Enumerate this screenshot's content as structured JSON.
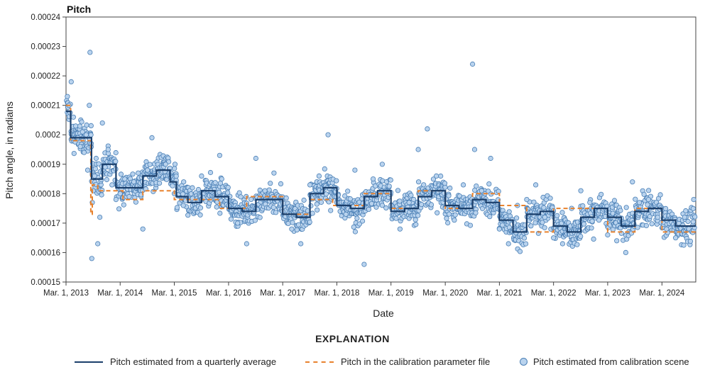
{
  "chart_data": {
    "type": "scatter",
    "title": "Pitch",
    "xlabel": "Date",
    "ylabel": "Pitch angle, in radians",
    "ylim": [
      0.00015,
      0.00024
    ],
    "xlim": [
      "2013-03-01",
      "2024-10-15"
    ],
    "yticks": [
      "0.00015",
      "0.00016",
      "0.00017",
      "0.00018",
      "0.00019",
      "0.0002",
      "0.00021",
      "0.00022",
      "0.00023",
      "0.00024"
    ],
    "xticks": [
      {
        "date": "2013-03-01",
        "label": "Mar. 1, 2013"
      },
      {
        "date": "2014-03-01",
        "label": "Mar. 1, 2014"
      },
      {
        "date": "2015-03-01",
        "label": "Mar. 1, 2015"
      },
      {
        "date": "2016-03-01",
        "label": "Mar. 1, 2016"
      },
      {
        "date": "2017-03-01",
        "label": "Mar. 1, 2017"
      },
      {
        "date": "2018-03-01",
        "label": "Mar. 1, 2018"
      },
      {
        "date": "2019-03-01",
        "label": "Mar. 1, 2019"
      },
      {
        "date": "2020-03-01",
        "label": "Mar. 1, 2020"
      },
      {
        "date": "2021-03-01",
        "label": "Mar. 1, 2021"
      },
      {
        "date": "2022-03-01",
        "label": "Mar. 1, 2022"
      },
      {
        "date": "2023-03-01",
        "label": "Mar. 1, 2023"
      },
      {
        "date": "2024-03-01",
        "label": "Mar. 1, 2024"
      }
    ],
    "legend_title": "EXPLANATION",
    "series": [
      {
        "name": "Pitch estimated from a quarterly average",
        "style": "step-solid",
        "color": "#1b3f6b",
        "steps": [
          [
            "2013-03-01",
            0.000208
          ],
          [
            "2013-04-01",
            0.000199
          ],
          [
            "2013-08-20",
            0.000185
          ],
          [
            "2013-11-01",
            0.00019
          ],
          [
            "2014-02-01",
            0.000182
          ],
          [
            "2014-05-01",
            0.000182
          ],
          [
            "2014-08-01",
            0.000186
          ],
          [
            "2014-11-01",
            0.000188
          ],
          [
            "2015-02-01",
            0.000184
          ],
          [
            "2015-03-15",
            0.000179
          ],
          [
            "2015-06-01",
            0.000177
          ],
          [
            "2015-09-01",
            0.000181
          ],
          [
            "2015-12-01",
            0.000179
          ],
          [
            "2016-03-01",
            0.000175
          ],
          [
            "2016-06-01",
            0.000174
          ],
          [
            "2016-09-01",
            0.000178
          ],
          [
            "2016-12-01",
            0.000178
          ],
          [
            "2017-03-01",
            0.000173
          ],
          [
            "2017-06-01",
            0.000172
          ],
          [
            "2017-09-01",
            0.00018
          ],
          [
            "2017-12-01",
            0.000182
          ],
          [
            "2018-03-01",
            0.000176
          ],
          [
            "2018-06-01",
            0.000175
          ],
          [
            "2018-09-01",
            0.000179
          ],
          [
            "2018-12-01",
            0.000181
          ],
          [
            "2019-03-01",
            0.000174
          ],
          [
            "2019-06-01",
            0.000175
          ],
          [
            "2019-09-01",
            0.000179
          ],
          [
            "2019-12-01",
            0.000181
          ],
          [
            "2020-03-01",
            0.000176
          ],
          [
            "2020-06-01",
            0.000175
          ],
          [
            "2020-09-01",
            0.000178
          ],
          [
            "2020-12-01",
            0.000177
          ],
          [
            "2021-03-01",
            0.000171
          ],
          [
            "2021-06-01",
            0.000167
          ],
          [
            "2021-09-01",
            0.000173
          ],
          [
            "2021-12-01",
            0.000174
          ],
          [
            "2022-03-01",
            0.000169
          ],
          [
            "2022-06-01",
            0.000167
          ],
          [
            "2022-09-01",
            0.000172
          ],
          [
            "2022-12-01",
            0.000175
          ],
          [
            "2023-03-01",
            0.000172
          ],
          [
            "2023-06-01",
            0.000169
          ],
          [
            "2023-09-01",
            0.000174
          ],
          [
            "2023-12-01",
            0.000175
          ],
          [
            "2024-03-01",
            0.000171
          ],
          [
            "2024-06-01",
            0.000169
          ]
        ],
        "end": "2024-10-15"
      },
      {
        "name": "Pitch in the calibration parameter file",
        "style": "step-dashed",
        "color": "#e8822e",
        "steps": [
          [
            "2013-03-01",
            0.00021
          ],
          [
            "2013-04-01",
            0.000198
          ],
          [
            "2013-08-15",
            0.000173
          ],
          [
            "2013-08-25",
            0.000183
          ],
          [
            "2013-10-01",
            0.000181
          ],
          [
            "2014-03-20",
            0.000178
          ],
          [
            "2014-08-01",
            0.000181
          ],
          [
            "2015-03-01",
            0.000178
          ],
          [
            "2016-01-01",
            0.000175
          ],
          [
            "2016-07-01",
            0.000179
          ],
          [
            "2017-03-01",
            0.000173
          ],
          [
            "2017-09-01",
            0.000178
          ],
          [
            "2018-02-01",
            0.000176
          ],
          [
            "2018-09-01",
            0.00018
          ],
          [
            "2019-03-01",
            0.000175
          ],
          [
            "2019-09-01",
            0.000181
          ],
          [
            "2020-03-01",
            0.000175
          ],
          [
            "2020-09-01",
            0.00018
          ],
          [
            "2021-03-01",
            0.000176
          ],
          [
            "2021-09-01",
            0.000167
          ],
          [
            "2022-03-01",
            0.000175
          ],
          [
            "2023-03-01",
            0.000167
          ],
          [
            "2023-09-01",
            0.000175
          ],
          [
            "2024-03-01",
            0.000167
          ]
        ],
        "end": "2024-10-15"
      },
      {
        "name": "Pitch estimated from calibration scene",
        "style": "scatter",
        "color": "#b9d3ee",
        "stroke": "#4a7fb5",
        "points": [
          [
            "2013-03-10",
            0.000213
          ],
          [
            "2013-03-20",
            0.00021
          ],
          [
            "2013-04-05",
            0.000218
          ],
          [
            "2013-04-20",
            0.000206
          ],
          [
            "2013-05-05",
            0.000203
          ],
          [
            "2013-05-20",
            0.000199
          ],
          [
            "2013-06-05",
            0.000196
          ],
          [
            "2013-06-20",
            0.000201
          ],
          [
            "2013-07-01",
            0.000194
          ],
          [
            "2013-07-15",
            0.0002
          ],
          [
            "2013-07-25",
            0.000188
          ],
          [
            "2013-08-05",
            0.00021
          ],
          [
            "2013-08-10",
            0.000228
          ],
          [
            "2013-08-18",
            0.000197
          ],
          [
            "2013-08-22",
            0.000158
          ],
          [
            "2013-08-25",
            0.000177
          ],
          [
            "2013-09-01",
            0.000181
          ],
          [
            "2013-09-10",
            0.000186
          ],
          [
            "2013-09-20",
            0.000192
          ],
          [
            "2013-10-01",
            0.000163
          ],
          [
            "2013-10-15",
            0.000172
          ],
          [
            "2013-11-01",
            0.000204
          ],
          [
            "2013-11-20",
            0.000189
          ],
          [
            "2013-12-10",
            0.000195
          ],
          [
            "2014-01-05",
            0.000183
          ],
          [
            "2014-02-01",
            0.000178
          ],
          [
            "2014-03-01",
            0.00018
          ],
          [
            "2014-04-01",
            0.000185
          ],
          [
            "2014-05-01",
            0.000179
          ],
          [
            "2014-06-01",
            0.000184
          ],
          [
            "2014-07-01",
            0.000187
          ],
          [
            "2014-08-01",
            0.000168
          ],
          [
            "2014-09-01",
            0.000188
          ],
          [
            "2014-10-01",
            0.000199
          ],
          [
            "2014-11-01",
            0.000186
          ],
          [
            "2015-01-01",
            0.00019
          ],
          [
            "2015-03-01",
            0.00018
          ],
          [
            "2015-05-01",
            0.000176
          ],
          [
            "2015-07-01",
            0.000182
          ],
          [
            "2015-09-01",
            0.000186
          ],
          [
            "2015-11-01",
            0.000181
          ],
          [
            "2016-01-01",
            0.000193
          ],
          [
            "2016-03-01",
            0.000176
          ],
          [
            "2016-05-01",
            0.00017
          ],
          [
            "2016-07-01",
            0.000163
          ],
          [
            "2016-09-01",
            0.000192
          ],
          [
            "2016-11-01",
            0.000181
          ],
          [
            "2017-01-01",
            0.000187
          ],
          [
            "2017-03-01",
            0.000174
          ],
          [
            "2017-05-01",
            0.000168
          ],
          [
            "2017-07-01",
            0.000163
          ],
          [
            "2017-09-01",
            0.000183
          ],
          [
            "2017-11-01",
            0.000186
          ],
          [
            "2018-01-01",
            0.0002
          ],
          [
            "2018-03-01",
            0.000177
          ],
          [
            "2018-05-01",
            0.000173
          ],
          [
            "2018-07-01",
            0.000188
          ],
          [
            "2018-09-01",
            0.000156
          ],
          [
            "2018-11-01",
            0.000185
          ],
          [
            "2019-01-01",
            0.00019
          ],
          [
            "2019-03-01",
            0.000176
          ],
          [
            "2019-05-01",
            0.000168
          ],
          [
            "2019-07-01",
            0.000177
          ],
          [
            "2019-09-01",
            0.000195
          ],
          [
            "2019-11-01",
            0.000202
          ],
          [
            "2020-01-01",
            0.000186
          ],
          [
            "2020-03-01",
            0.000175
          ],
          [
            "2020-05-01",
            0.000171
          ],
          [
            "2020-07-01",
            0.000183
          ],
          [
            "2020-09-01",
            0.000224
          ],
          [
            "2020-09-15",
            0.000195
          ],
          [
            "2020-11-01",
            0.000181
          ],
          [
            "2021-01-01",
            0.000192
          ],
          [
            "2021-03-01",
            0.000168
          ],
          [
            "2021-05-01",
            0.000163
          ],
          [
            "2021-07-01",
            0.000176
          ],
          [
            "2021-09-01",
            0.000178
          ],
          [
            "2021-11-01",
            0.000183
          ],
          [
            "2022-01-01",
            0.000172
          ],
          [
            "2022-03-01",
            0.000165
          ],
          [
            "2022-05-01",
            0.000163
          ],
          [
            "2022-07-01",
            0.000175
          ],
          [
            "2022-09-01",
            0.000181
          ],
          [
            "2022-11-01",
            0.000177
          ],
          [
            "2023-01-01",
            0.000171
          ],
          [
            "2023-03-01",
            0.000166
          ],
          [
            "2023-05-01",
            0.000164
          ],
          [
            "2023-07-01",
            0.00016
          ],
          [
            "2023-08-15",
            0.000184
          ],
          [
            "2023-10-01",
            0.000177
          ],
          [
            "2023-12-01",
            0.000178
          ],
          [
            "2024-02-01",
            0.000172
          ],
          [
            "2024-04-01",
            0.000168
          ],
          [
            "2024-06-01",
            0.000165
          ],
          [
            "2024-08-01",
            0.000172
          ],
          [
            "2024-10-01",
            0.000178
          ]
        ],
        "random_cloud": true
      }
    ]
  }
}
